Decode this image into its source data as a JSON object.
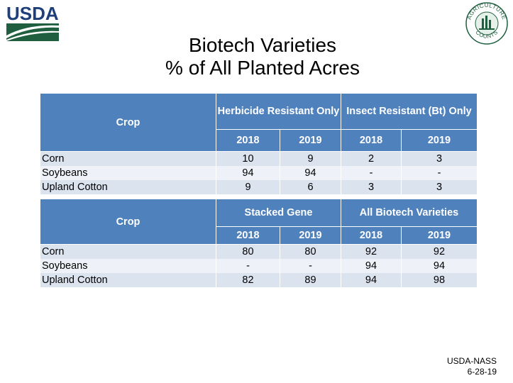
{
  "logo": {
    "agency": "USDA"
  },
  "seal": {
    "top_text": "AGRICULTURE",
    "bottom_text": "COUNTS"
  },
  "title": {
    "line1": "Biotech Varieties",
    "line2": "% of All Planted Acres"
  },
  "table1": {
    "crop_header": "Crop",
    "group1": "Herbicide Resistant Only",
    "group2": "Insect Resistant (Bt) Only",
    "years": [
      "2018",
      "2019",
      "2018",
      "2019"
    ],
    "rows": [
      {
        "crop": "Corn",
        "values": [
          "10",
          "9",
          "2",
          "3"
        ]
      },
      {
        "crop": "Soybeans",
        "values": [
          "94",
          "94",
          "-",
          "-"
        ]
      },
      {
        "crop": "Upland Cotton",
        "values": [
          "9",
          "6",
          "3",
          "3"
        ]
      }
    ]
  },
  "table2": {
    "crop_header": "Crop",
    "group1": "Stacked Gene",
    "group2": "All Biotech Varieties",
    "years": [
      "2018",
      "2019",
      "2018",
      "2019"
    ],
    "rows": [
      {
        "crop": "Corn",
        "values": [
          "80",
          "80",
          "92",
          "92"
        ]
      },
      {
        "crop": "Soybeans",
        "values": [
          "-",
          "-",
          "94",
          "94"
        ]
      },
      {
        "crop": "Upland Cotton",
        "values": [
          "82",
          "89",
          "94",
          "98"
        ]
      }
    ]
  },
  "footer": {
    "source": "USDA-NASS",
    "date": "6-28-19"
  }
}
